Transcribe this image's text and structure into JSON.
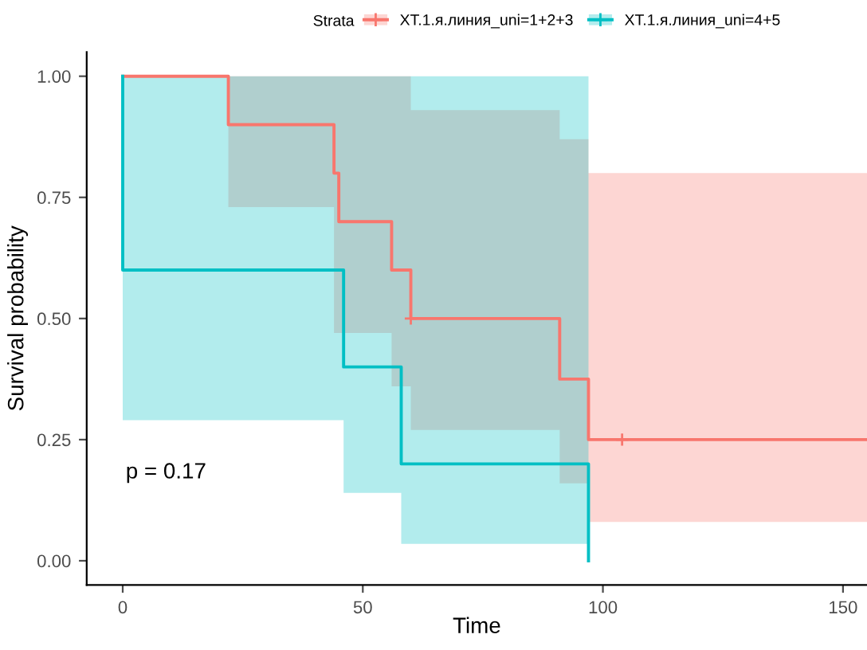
{
  "chart_data": {
    "type": "step",
    "xlabel": "Time",
    "ylabel": "Survival probability",
    "legend_title": "Strata",
    "legend": "top",
    "grid": false,
    "line_style": "solid",
    "xlim": [
      -7.5,
      155
    ],
    "xticks": [
      0,
      50,
      100,
      150
    ],
    "ylim": [
      -0.05,
      1.05
    ],
    "yticks": [
      {
        "value": 0,
        "label": "0.00"
      },
      {
        "value": 0.25,
        "label": "0.25"
      },
      {
        "value": 0.5,
        "label": "0.50"
      },
      {
        "value": 0.75,
        "label": "0.75"
      },
      {
        "value": 1,
        "label": "1.00"
      }
    ],
    "series": [
      {
        "name": "XT.1.я.линия_uni=1+2+3",
        "color": "#f8766d",
        "x": [
          0,
          22,
          44,
          45,
          56,
          60,
          91,
          97,
          155
        ],
        "values": [
          1,
          0.9,
          0.8,
          0.7,
          0.6,
          0.5,
          0.375,
          0.25,
          0.25
        ],
        "lower": [
          1,
          0.73,
          0.47,
          0.47,
          0.36,
          0.27,
          0.16,
          0.08,
          0.08
        ],
        "upper": [
          1,
          1,
          1,
          1,
          1,
          0.93,
          0.87,
          0.8,
          0.8
        ]
      },
      {
        "name": "XT.1.я.линия_uni=4+5",
        "color": "#00bfc4",
        "x": [
          0,
          0,
          46,
          58,
          97
        ],
        "values": [
          1,
          0.6,
          0.4,
          0.2,
          0
        ],
        "lower": [
          1,
          0.29,
          0.14,
          0.035,
          0
        ],
        "upper": [
          1,
          1,
          1,
          1,
          0
        ]
      },
      {
        "type": "scatter",
        "color": "#f8766d",
        "marker": "cross",
        "x": [
          60,
          104
        ],
        "values": [
          0.5,
          0.25
        ]
      }
    ],
    "annotations": [
      "p = 0.17"
    ]
  }
}
